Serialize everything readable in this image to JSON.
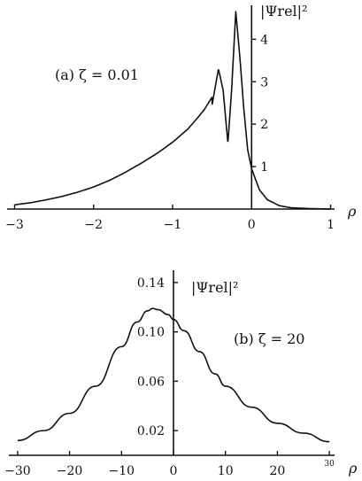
{
  "chart_data": [
    {
      "type": "line",
      "annotation": "(a)  ζ = 0.01",
      "ylabel": "|Ψrel|²",
      "xlabel": "ρ",
      "xlim": [
        -3.05,
        1.05
      ],
      "ylim": [
        0,
        4.8
      ],
      "xticks": [
        -3,
        -2,
        -1,
        0,
        1
      ],
      "xtick_labels": [
        "−3",
        "−2",
        "−1",
        "0",
        "1"
      ],
      "yticks": [
        1,
        2,
        3,
        4
      ],
      "ytick_labels": [
        "1",
        "2",
        "3",
        "4"
      ],
      "series": [
        {
          "x": [
            -3.0,
            -2.8,
            -2.6,
            -2.4,
            -2.2,
            -2.0,
            -1.8,
            -1.6,
            -1.4,
            -1.2,
            -1.0,
            -0.9,
            -0.8,
            -0.7,
            -0.6,
            -0.5,
            -0.42,
            -0.36,
            -0.3,
            -0.25,
            -0.2,
            -0.15,
            -0.1,
            -0.05,
            0.0,
            0.1,
            0.2,
            0.35,
            0.5,
            0.75,
            1.0
          ],
          "y": [
            0.1,
            0.14,
            0.2,
            0.27,
            0.36,
            0.47,
            0.61,
            0.78,
            0.98,
            1.2,
            1.45,
            1.6,
            1.75,
            1.95,
            2.15,
            2.45,
            3.3,
            2.8,
            1.55,
            2.9,
            4.65,
            3.6,
            2.4,
            1.4,
            0.95,
            0.45,
            0.22,
            0.08,
            0.03,
            0.01,
            0.0
          ]
        }
      ]
    },
    {
      "type": "line",
      "annotation": "(b)  ζ = 20",
      "ylabel": "|Ψrel|²",
      "xlabel": "ρ",
      "xlim": [
        -31,
        31
      ],
      "ylim": [
        0,
        0.15
      ],
      "xticks": [
        -30,
        -20,
        -10,
        0,
        10,
        20,
        30
      ],
      "xtick_labels": [
        "−30",
        "−20",
        "−10",
        "0",
        "10",
        "20",
        "30"
      ],
      "yticks": [
        0.02,
        0.06,
        0.1,
        0.14
      ],
      "ytick_labels": [
        "0.02",
        "0.06",
        "0.10",
        "0.14"
      ],
      "series": [
        {
          "x": [
            -30,
            -25,
            -20,
            -15,
            -10,
            -7,
            -5,
            -4,
            -3,
            -1,
            0,
            2,
            5,
            8,
            10,
            15,
            20,
            25,
            30
          ],
          "y": [
            0.012,
            0.02,
            0.034,
            0.056,
            0.088,
            0.108,
            0.117,
            0.119,
            0.118,
            0.114,
            0.11,
            0.101,
            0.084,
            0.066,
            0.056,
            0.039,
            0.026,
            0.018,
            0.011
          ]
        }
      ]
    }
  ]
}
